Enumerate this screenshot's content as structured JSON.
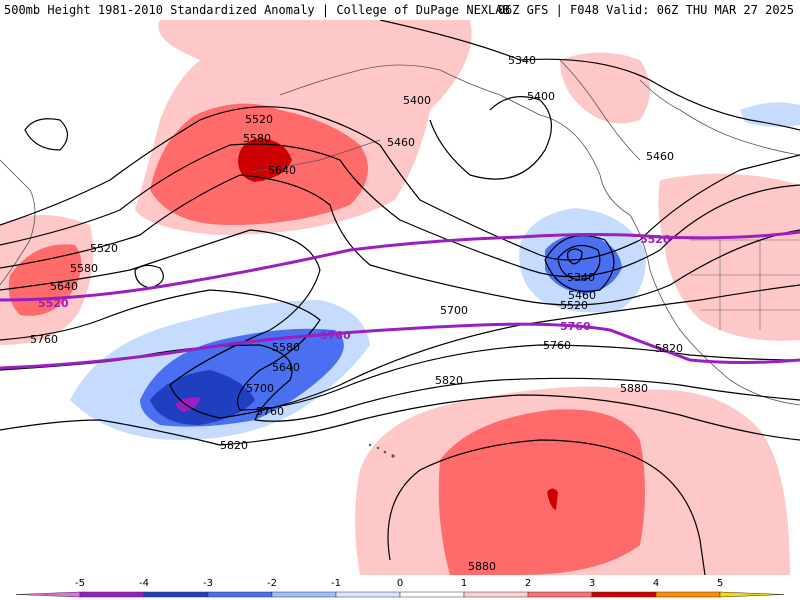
{
  "header": {
    "title_left": "500mb Height 1981-2010 Standardized Anomaly | College of DuPage NEXLAB",
    "title_right": "06Z GFS | F048 Valid: 06Z THU MAR 27 2025"
  },
  "contour_labels": [
    "5340",
    "5400",
    "5460",
    "5520",
    "5580",
    "5640",
    "5700",
    "5760",
    "5820",
    "5880"
  ],
  "highlighted_labels": [
    "5520",
    "5760"
  ],
  "colorbar": {
    "ticks": [
      "-5",
      "-4",
      "-3",
      "-2",
      "-1",
      "0",
      "1",
      "2",
      "3",
      "4",
      "5"
    ],
    "colors": [
      "#e070e0",
      "#9a1fc0",
      "#1f3fc0",
      "#4a6ff0",
      "#9fc0ff",
      "#d8e8ff",
      "#ffffff",
      "#ffd0d0",
      "#ff7070",
      "#d00000",
      "#ff8c00",
      "#ffd700"
    ]
  },
  "colors": {
    "positive_light": "#ffc8c8",
    "positive_medium": "#ff6b6b",
    "positive_strong": "#cc0000",
    "negative_light": "#c6dcff",
    "negative_medium": "#4a6ff0",
    "negative_strong": "#1f3fc0",
    "negative_extreme": "#9a1fc0",
    "highlight_contour": "#9b1fc0"
  }
}
